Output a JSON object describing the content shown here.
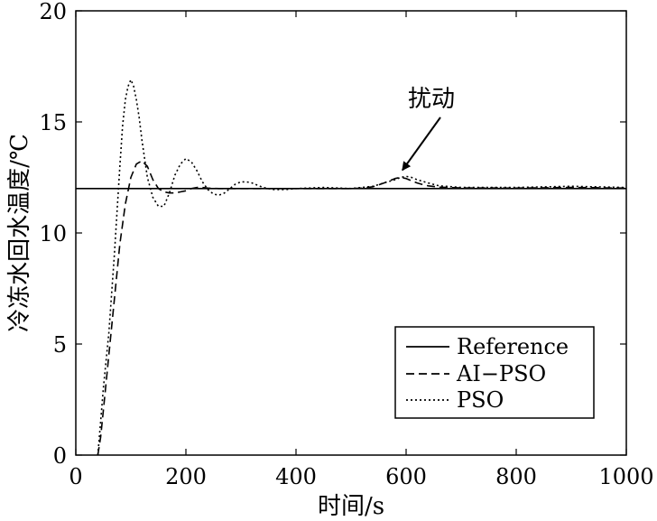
{
  "chart_data": {
    "type": "line",
    "xlabel": "时间/s",
    "ylabel": "冷冻水回水温度/℃",
    "xlim": [
      0,
      1000
    ],
    "ylim": [
      0,
      20
    ],
    "x_ticks": [
      0,
      200,
      400,
      600,
      800,
      1000
    ],
    "y_ticks": [
      0,
      5,
      10,
      15,
      20
    ],
    "grid": false,
    "legend_position": "bottom-right",
    "annotation": {
      "text": "扰动",
      "x": 590,
      "y": 12.5
    },
    "series": [
      {
        "name": "Reference",
        "style": "solid",
        "x": [
          0,
          1000
        ],
        "y": [
          12,
          12
        ]
      },
      {
        "name": "AI−PSO",
        "style": "dashed",
        "x": [
          40,
          45,
          50,
          60,
          70,
          80,
          90,
          100,
          110,
          120,
          130,
          140,
          150,
          160,
          170,
          180,
          190,
          200,
          210,
          220,
          230,
          240,
          260,
          280,
          300,
          350,
          400,
          450,
          500,
          520,
          540,
          560,
          570,
          580,
          590,
          600,
          610,
          620,
          630,
          640,
          660,
          700,
          800,
          900,
          1000
        ],
        "y": [
          0,
          0.8,
          2.0,
          4.5,
          7.0,
          9.5,
          11.3,
          12.5,
          13.1,
          13.25,
          13.0,
          12.4,
          12.0,
          11.85,
          11.8,
          11.8,
          11.85,
          11.9,
          12.0,
          12.05,
          12.05,
          12.02,
          12.0,
          12.0,
          12.0,
          12.0,
          12.0,
          12.0,
          12.0,
          12.02,
          12.08,
          12.25,
          12.35,
          12.45,
          12.5,
          12.45,
          12.35,
          12.25,
          12.18,
          12.12,
          12.06,
          12.03,
          12.02,
          12.05,
          12.02
        ]
      },
      {
        "name": "PSO",
        "style": "dotted",
        "x": [
          40,
          45,
          50,
          60,
          70,
          80,
          85,
          90,
          95,
          100,
          105,
          110,
          115,
          120,
          130,
          140,
          150,
          160,
          170,
          180,
          190,
          200,
          210,
          220,
          230,
          240,
          250,
          260,
          270,
          280,
          290,
          300,
          310,
          320,
          330,
          340,
          360,
          380,
          400,
          450,
          500,
          540,
          560,
          580,
          590,
          600,
          610,
          620,
          640,
          660,
          700,
          800,
          900,
          1000
        ],
        "y": [
          0,
          1.5,
          3.0,
          5.5,
          9.0,
          13.0,
          14.8,
          16.0,
          16.6,
          16.9,
          16.6,
          16.0,
          15.2,
          14.2,
          12.5,
          11.6,
          11.2,
          11.2,
          11.8,
          12.6,
          13.1,
          13.35,
          13.2,
          12.8,
          12.3,
          11.95,
          11.75,
          11.7,
          11.8,
          12.0,
          12.2,
          12.3,
          12.3,
          12.25,
          12.15,
          12.05,
          11.95,
          11.95,
          12.0,
          12.05,
          12.0,
          12.1,
          12.25,
          12.4,
          12.5,
          12.55,
          12.5,
          12.4,
          12.25,
          12.12,
          12.05,
          12.05,
          12.1,
          12.05
        ]
      }
    ]
  }
}
